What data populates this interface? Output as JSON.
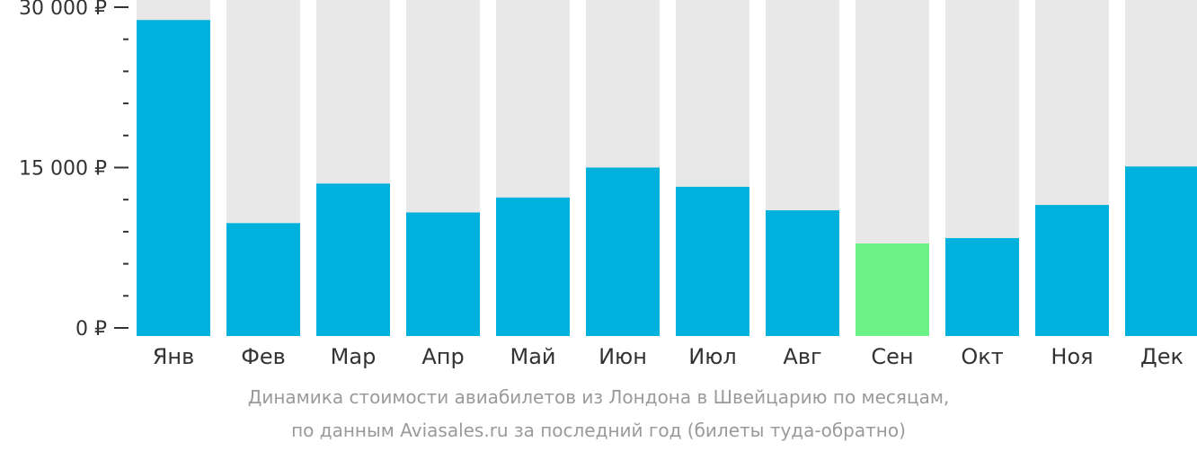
{
  "chart_data": {
    "type": "bar",
    "categories": [
      "Янв",
      "Фев",
      "Мар",
      "Апр",
      "Май",
      "Июн",
      "Июл",
      "Авг",
      "Сен",
      "Окт",
      "Ноя",
      "Дек"
    ],
    "values": [
      28800,
      9800,
      13500,
      10800,
      12200,
      15000,
      13200,
      11000,
      7900,
      8400,
      11500,
      15100
    ],
    "highlight_index": 8,
    "ylim": [
      0,
      30000
    ],
    "yticks": [
      {
        "value": 0,
        "label": "0 ₽"
      },
      {
        "value": 15000,
        "label": "15 000 ₽"
      },
      {
        "value": 30000,
        "label": "30 000 ₽"
      }
    ],
    "minor_tick_step": 3000,
    "colors": {
      "bar": "#00b1dd",
      "highlight": "#6cf186",
      "background_bar": "#e8e8e8",
      "axis": "#333333"
    }
  },
  "caption": {
    "line1": "Динамика стоимости авиабилетов из Лондона в Швейцарию по месяцам,",
    "line2": "по данным Aviasales.ru за последний год (билеты туда-обратно)"
  }
}
